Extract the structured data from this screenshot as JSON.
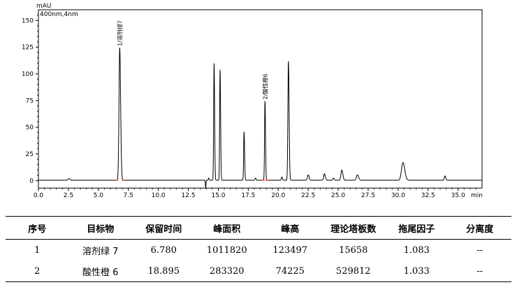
{
  "chart_data": {
    "type": "line",
    "ylabel": "mAU",
    "xlabel": "min",
    "series": [
      {
        "name": "400nm,4nm"
      }
    ],
    "xlim": [
      0,
      37
    ],
    "ylim": [
      -7,
      160
    ],
    "x_ticks": [
      "0.0",
      "2.5",
      "5.0",
      "7.5",
      "10.0",
      "12.5",
      "15.0",
      "17.5",
      "20.0",
      "22.5",
      "25.0",
      "27.5",
      "30.0",
      "32.5",
      "35.0"
    ],
    "x_tick_values": [
      0,
      2.5,
      5,
      7.5,
      10,
      12.5,
      15,
      17.5,
      20,
      22.5,
      25,
      27.5,
      30,
      32.5,
      35
    ],
    "y_ticks": [
      "0",
      "25",
      "50",
      "75",
      "100",
      "125",
      "150"
    ],
    "y_tick_values": [
      0,
      25,
      50,
      75,
      100,
      125,
      150
    ],
    "peaks": [
      {
        "rt": 2.55,
        "height": 1.5,
        "width": 0.07
      },
      {
        "rt": 6.78,
        "height": 124,
        "width": 0.06,
        "label": "1/溶剂绿7"
      },
      {
        "rt": 14.2,
        "height": 2,
        "width": 0.03
      },
      {
        "rt": 14.65,
        "height": 109,
        "width": 0.035
      },
      {
        "rt": 15.15,
        "height": 103,
        "width": 0.035
      },
      {
        "rt": 17.15,
        "height": 45,
        "width": 0.035
      },
      {
        "rt": 18.1,
        "height": 2,
        "width": 0.04
      },
      {
        "rt": 18.895,
        "height": 74,
        "width": 0.035,
        "label": "2/酸性橙6"
      },
      {
        "rt": 20.3,
        "height": 3,
        "width": 0.04
      },
      {
        "rt": 20.85,
        "height": 111,
        "width": 0.045
      },
      {
        "rt": 22.5,
        "height": 5,
        "width": 0.06
      },
      {
        "rt": 23.85,
        "height": 6,
        "width": 0.06
      },
      {
        "rt": 24.6,
        "height": 2,
        "width": 0.05
      },
      {
        "rt": 25.3,
        "height": 9.5,
        "width": 0.07
      },
      {
        "rt": 26.6,
        "height": 5,
        "width": 0.08
      },
      {
        "rt": 30.4,
        "height": 16.5,
        "width": 0.12
      },
      {
        "rt": 33.9,
        "height": 4,
        "width": 0.05
      }
    ],
    "baseline_dip": {
      "rt": 13.95,
      "depth": -7
    }
  },
  "table": {
    "headers": [
      "序号",
      "目标物",
      "保留时间",
      "峰面积",
      "峰高",
      "理论塔板数",
      "拖尾因子",
      "分离度"
    ],
    "rows": [
      [
        "1",
        "溶剂绿 7",
        "6.780",
        "1011820",
        "123497",
        "15658",
        "1.083",
        "--"
      ],
      [
        "2",
        "酸性橙 6",
        "18.895",
        "283320",
        "74225",
        "529812",
        "1.033",
        "--"
      ]
    ]
  },
  "colors": {
    "trace": "#000000",
    "marker": "#e0413b",
    "axis": "#000000"
  }
}
